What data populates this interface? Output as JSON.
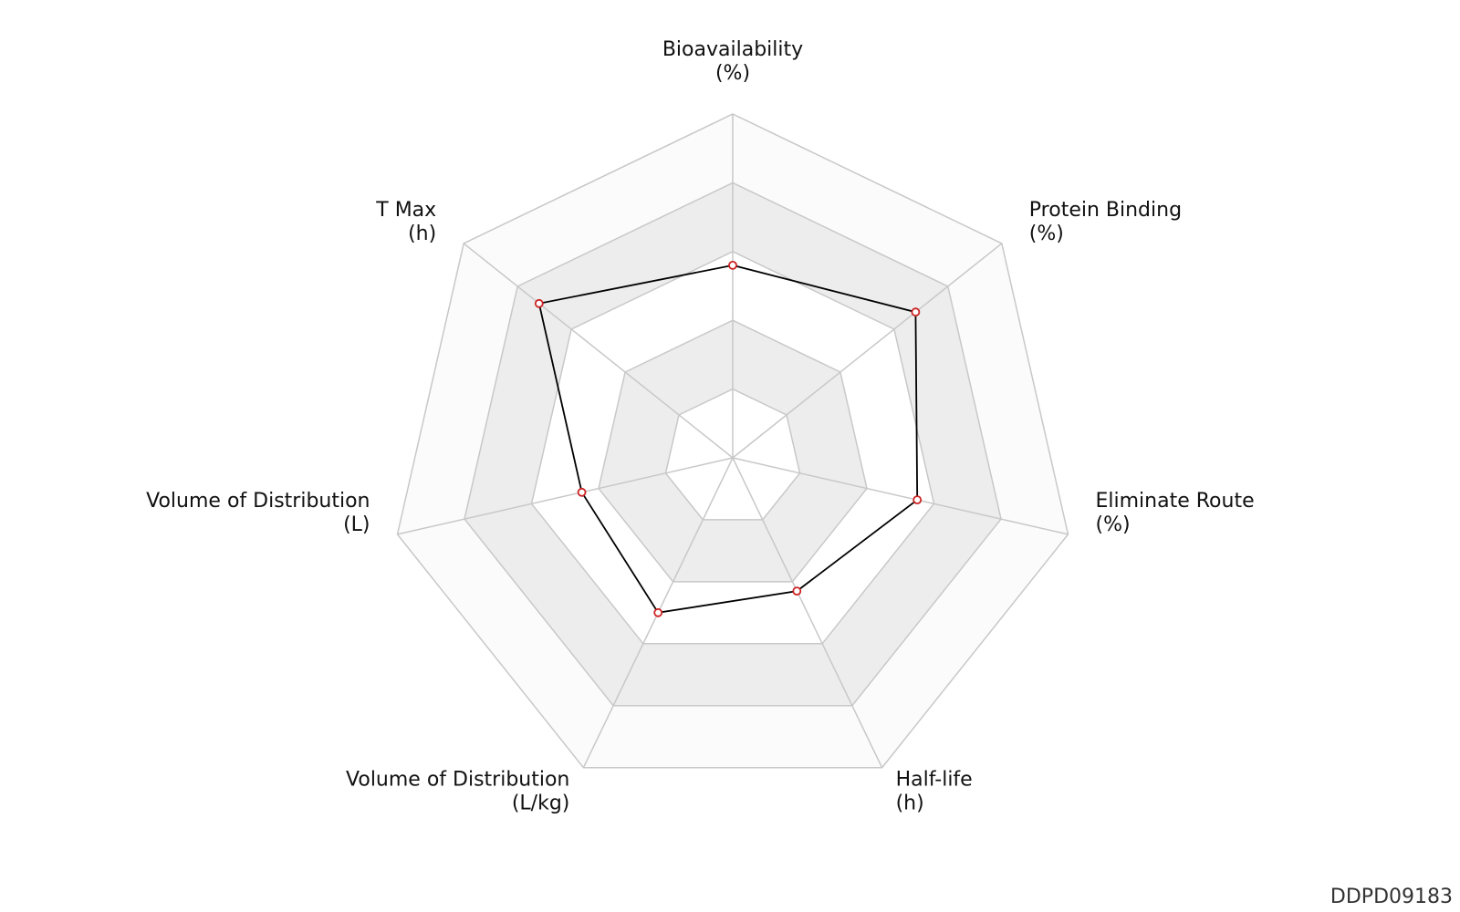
{
  "chart_data": {
    "type": "radar",
    "axes": [
      {
        "name": "Bioavailability",
        "unit": "(%)"
      },
      {
        "name": "Protein Binding",
        "unit": "(%)"
      },
      {
        "name": "Eliminate Route",
        "unit": "(%)"
      },
      {
        "name": "Half-life",
        "unit": "(h)"
      },
      {
        "name": "Volume of Distribution",
        "unit": "(L/kg)"
      },
      {
        "name": "Volume of Distribution",
        "unit": "(L)"
      },
      {
        "name": "T Max",
        "unit": "(h)"
      }
    ],
    "values": [
      0.56,
      0.68,
      0.55,
      0.43,
      0.5,
      0.45,
      0.72
    ],
    "levels": 5,
    "range": [
      0,
      1
    ],
    "grid": "polygon",
    "band_fill": [
      "#ffffff",
      "#ededed",
      "#ffffff",
      "#ededed",
      "#fbfbfb"
    ],
    "grid_color": "#c8c8c8",
    "line_color": "#000000",
    "marker_color": "#cc2222"
  },
  "footer": {
    "id": "DDPD09183"
  }
}
